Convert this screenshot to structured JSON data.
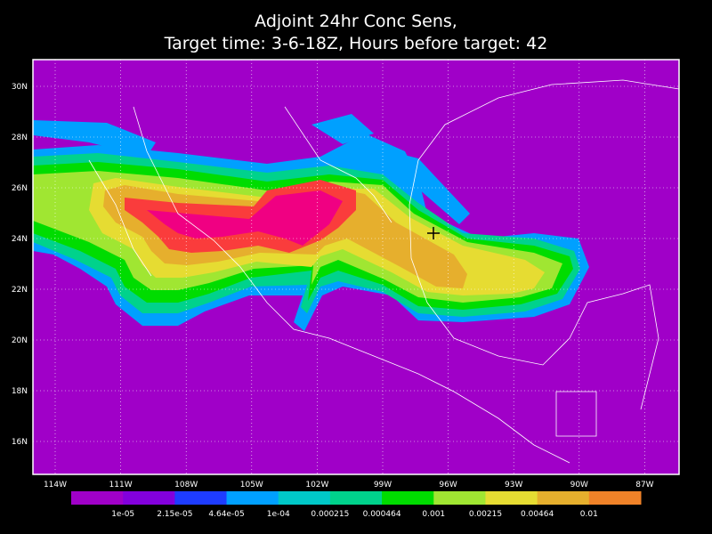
{
  "title": [
    "Adjoint 24hr Conc Sens,",
    "Target time: 3-6-18Z, Hours before target: 42"
  ],
  "lat_ticks": [
    "30N",
    "28N",
    "26N",
    "24N",
    "22N",
    "20N",
    "18N",
    "16N"
  ],
  "lon_ticks": [
    "114W",
    "111W",
    "108W",
    "105W",
    "102W",
    "99W",
    "96W",
    "93W",
    "90W",
    "87W"
  ],
  "colorbar": {
    "colors": [
      "#a000c8",
      "#8200dc",
      "#1e3cff",
      "#00a0ff",
      "#00c8c8",
      "#00d28c",
      "#00dc00",
      "#a0e632",
      "#e6dc32",
      "#e6af2d",
      "#f08228",
      "#fa3c3c",
      "#f00082"
    ],
    "labels": [
      "1e-05",
      "2.15e-05",
      "4.64e-05",
      "1e-04",
      "0.000215",
      "0.000464",
      "0.001",
      "0.00215",
      "0.00464",
      "0.01"
    ]
  }
}
